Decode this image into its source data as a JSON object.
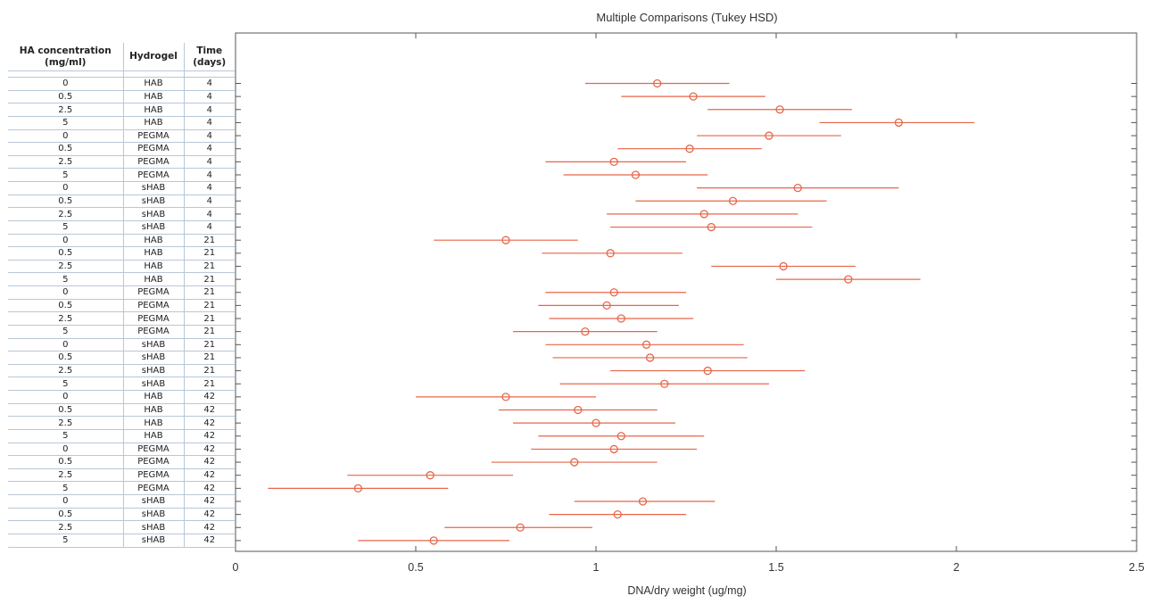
{
  "table": {
    "headers": [
      "HA concentration (mg/ml)",
      "Hydrogel",
      "Time (days)"
    ],
    "rows": [
      [
        "0",
        "HAB",
        "4"
      ],
      [
        "0.5",
        "HAB",
        "4"
      ],
      [
        "2.5",
        "HAB",
        "4"
      ],
      [
        "5",
        "HAB",
        "4"
      ],
      [
        "0",
        "PEGMA",
        "4"
      ],
      [
        "0.5",
        "PEGMA",
        "4"
      ],
      [
        "2.5",
        "PEGMA",
        "4"
      ],
      [
        "5",
        "PEGMA",
        "4"
      ],
      [
        "0",
        "sHAB",
        "4"
      ],
      [
        "0.5",
        "sHAB",
        "4"
      ],
      [
        "2.5",
        "sHAB",
        "4"
      ],
      [
        "5",
        "sHAB",
        "4"
      ],
      [
        "0",
        "HAB",
        "21"
      ],
      [
        "0.5",
        "HAB",
        "21"
      ],
      [
        "2.5",
        "HAB",
        "21"
      ],
      [
        "5",
        "HAB",
        "21"
      ],
      [
        "0",
        "PEGMA",
        "21"
      ],
      [
        "0.5",
        "PEGMA",
        "21"
      ],
      [
        "2.5",
        "PEGMA",
        "21"
      ],
      [
        "5",
        "PEGMA",
        "21"
      ],
      [
        "0",
        "sHAB",
        "21"
      ],
      [
        "0.5",
        "sHAB",
        "21"
      ],
      [
        "2.5",
        "sHAB",
        "21"
      ],
      [
        "5",
        "sHAB",
        "21"
      ],
      [
        "0",
        "HAB",
        "42"
      ],
      [
        "0.5",
        "HAB",
        "42"
      ],
      [
        "2.5",
        "HAB",
        "42"
      ],
      [
        "5",
        "HAB",
        "42"
      ],
      [
        "0",
        "PEGMA",
        "42"
      ],
      [
        "0.5",
        "PEGMA",
        "42"
      ],
      [
        "2.5",
        "PEGMA",
        "42"
      ],
      [
        "5",
        "PEGMA",
        "42"
      ],
      [
        "0",
        "sHAB",
        "42"
      ],
      [
        "0.5",
        "sHAB",
        "42"
      ],
      [
        "2.5",
        "sHAB",
        "42"
      ],
      [
        "5",
        "sHAB",
        "42"
      ]
    ]
  },
  "chart_data": {
    "type": "scatter",
    "title": "Multiple Comparisons (Tukey HSD)",
    "xlabel": "DNA/dry weight (ug/mg)",
    "ylabel": "",
    "xlim": [
      0,
      2.5
    ],
    "xticks": [
      0,
      0.5,
      1,
      1.5,
      2,
      2.5
    ],
    "xtick_labels": [
      "0",
      "0.5",
      "1",
      "1.5",
      "2",
      "2.5"
    ],
    "grid": false,
    "color": "#e8664a",
    "series": [
      {
        "mean": [
          1.17,
          1.27,
          1.51,
          1.84,
          1.48,
          1.26,
          1.05,
          1.11,
          1.56,
          1.38,
          1.3,
          1.32,
          0.75,
          1.04,
          1.52,
          1.7,
          1.05,
          1.03,
          1.07,
          0.97,
          1.14,
          1.15,
          1.31,
          1.19,
          0.75,
          0.95,
          1.0,
          1.07,
          1.05,
          0.94,
          0.54,
          0.34,
          1.13,
          1.06,
          0.79,
          0.55
        ],
        "lower": [
          0.97,
          1.07,
          1.31,
          1.62,
          1.28,
          1.06,
          0.86,
          0.91,
          1.28,
          1.11,
          1.03,
          1.04,
          0.55,
          0.85,
          1.32,
          1.5,
          0.86,
          0.84,
          0.87,
          0.77,
          0.86,
          0.88,
          1.04,
          0.9,
          0.5,
          0.73,
          0.77,
          0.84,
          0.82,
          0.71,
          0.31,
          0.09,
          0.94,
          0.87,
          0.58,
          0.34
        ],
        "upper": [
          1.37,
          1.47,
          1.71,
          2.05,
          1.68,
          1.46,
          1.25,
          1.31,
          1.84,
          1.64,
          1.56,
          1.6,
          0.95,
          1.24,
          1.72,
          1.9,
          1.25,
          1.23,
          1.27,
          1.17,
          1.41,
          1.42,
          1.58,
          1.48,
          1.0,
          1.17,
          1.22,
          1.3,
          1.28,
          1.17,
          0.77,
          0.59,
          1.33,
          1.25,
          0.99,
          0.76
        ]
      }
    ]
  }
}
